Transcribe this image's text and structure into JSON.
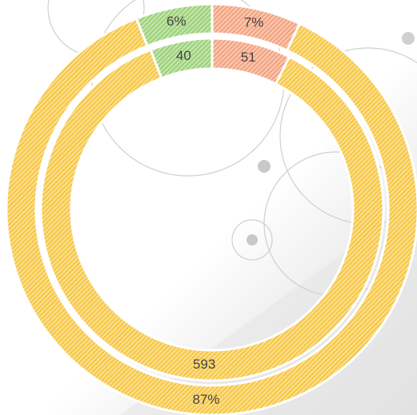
{
  "chart_data": {
    "type": "doughnut",
    "series": [
      {
        "values": [
          51,
          593,
          40
        ],
        "colors": [
          "#f4a582",
          "#f7c94a",
          "#9fd37c"
        ]
      },
      {
        "values": [
          7,
          87,
          6
        ],
        "value_labels": [
          "7%",
          "87%",
          "6%"
        ],
        "colors": [
          "#f4a582",
          "#f7c94a",
          "#9fd37c"
        ]
      }
    ]
  }
}
